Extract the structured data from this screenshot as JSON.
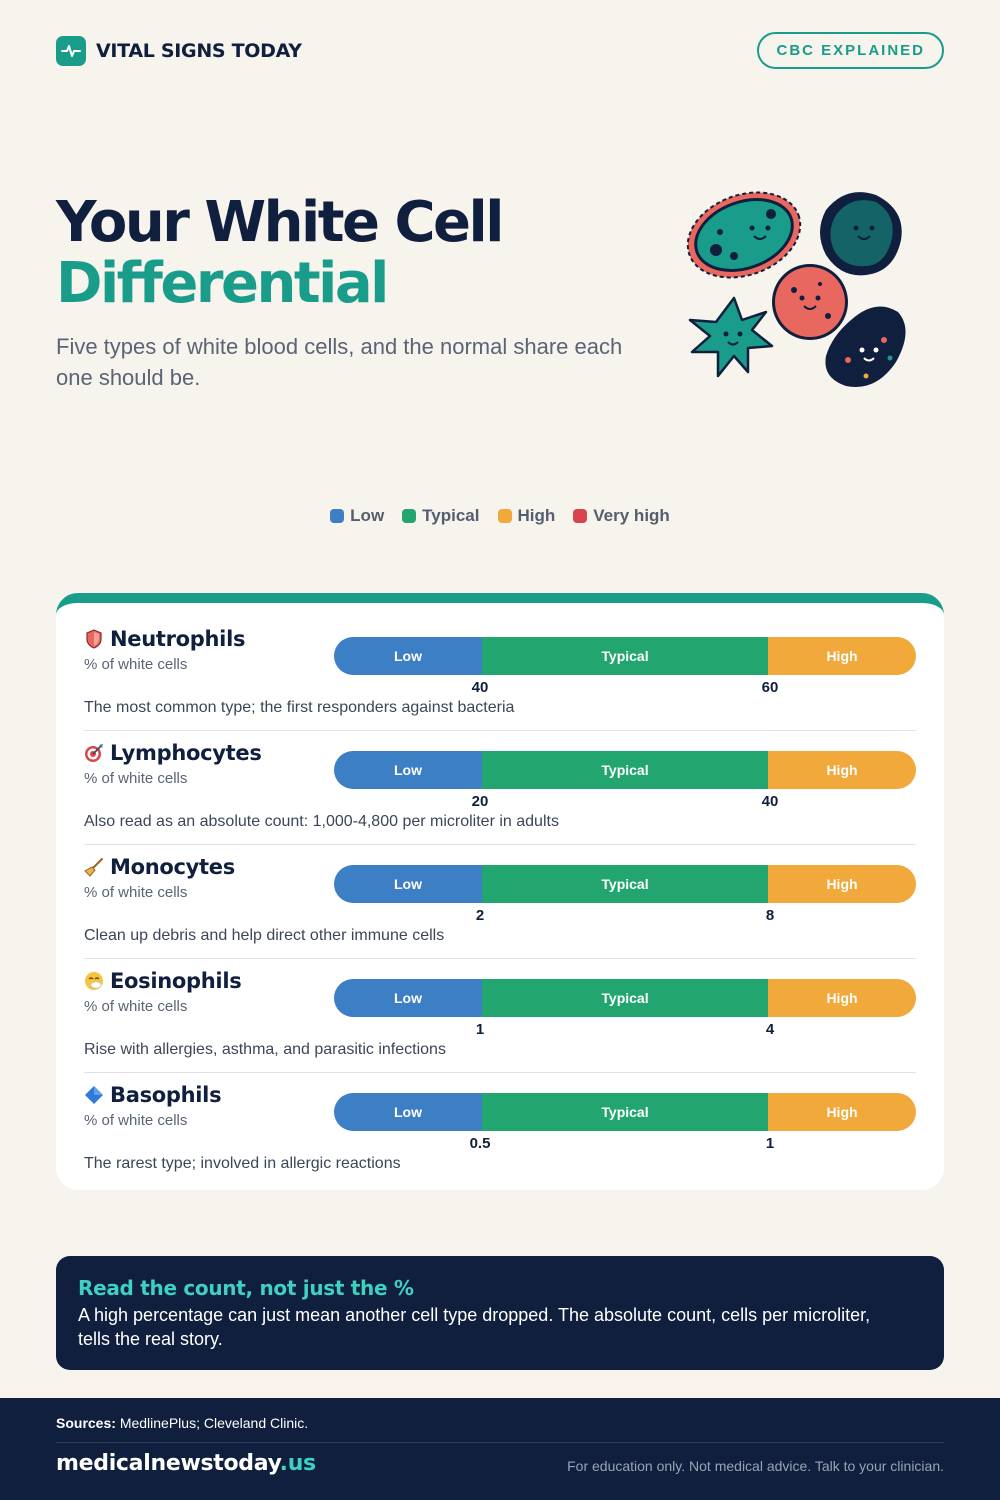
{
  "header": {
    "brand": "VITAL SIGNS TODAY",
    "pill": "CBC EXPLAINED"
  },
  "hero": {
    "title_line1": "Your White Cell",
    "title_line2": "Differential",
    "subtitle": "Five types of white blood cells, and the normal share each one should be."
  },
  "legend": [
    {
      "label": "Low",
      "color": "#3d7fc4"
    },
    {
      "label": "Typical",
      "color": "#22a56f"
    },
    {
      "label": "High",
      "color": "#f0a93a"
    },
    {
      "label": "Very high",
      "color": "#d9434b"
    }
  ],
  "segment_labels": {
    "low": "Low",
    "typical": "Typical",
    "high": "High"
  },
  "cells": [
    {
      "name": "Neutrophils",
      "icon": "shield-icon",
      "unit": "% of white cells",
      "low_limit": "40",
      "high_limit": "60",
      "desc": "The most common type; the first responders against bacteria"
    },
    {
      "name": "Lymphocytes",
      "icon": "target-icon",
      "unit": "% of white cells",
      "low_limit": "20",
      "high_limit": "40",
      "desc": "Also read as an absolute count: 1,000-4,800 per microliter in adults"
    },
    {
      "name": "Monocytes",
      "icon": "broom-icon",
      "unit": "% of white cells",
      "low_limit": "2",
      "high_limit": "8",
      "desc": "Clean up debris and help direct other immune cells"
    },
    {
      "name": "Eosinophils",
      "icon": "sneezing-face-icon",
      "unit": "% of white cells",
      "low_limit": "1",
      "high_limit": "4",
      "desc": "Rise with allergies, asthma, and parasitic infections"
    },
    {
      "name": "Basophils",
      "icon": "blue-diamond-icon",
      "unit": "% of white cells",
      "low_limit": "0.5",
      "high_limit": "1",
      "desc": "The rarest type; involved in allergic reactions"
    }
  ],
  "callout": {
    "title": "Read the count, not just the %",
    "body": "A high percentage can just mean another cell type dropped. The absolute count, cells per microliter, tells the real story."
  },
  "footer": {
    "sources_label": "Sources:",
    "sources_text": "MedlinePlus; Cleveland Clinic.",
    "site_name": "medicalnewstoday",
    "site_tld": ".us",
    "disclaimer": "For education only. Not medical advice. Talk to your clinician."
  }
}
